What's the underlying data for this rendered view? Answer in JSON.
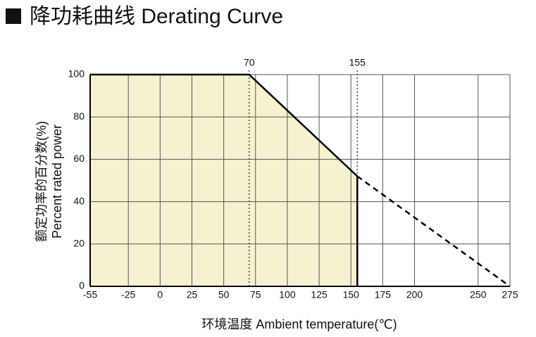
{
  "chart_data": {
    "type": "line",
    "title": "降功耗曲线 Derating Curve",
    "ylabel": [
      "额定功率的百分数(%)",
      "Percent rated power"
    ],
    "xlabel": "环境温度 Ambient temperature(℃)",
    "xlim": [
      -55,
      275
    ],
    "ylim": [
      0,
      100
    ],
    "xticks": [
      -55,
      -25,
      0,
      25,
      50,
      75,
      100,
      125,
      150,
      175,
      200,
      250,
      275
    ],
    "yticks": [
      0,
      20,
      40,
      60,
      80,
      100
    ],
    "grid": true,
    "vlines": [
      70,
      155
    ],
    "series": [
      {
        "x": [
          -55,
          70,
          155
        ],
        "values": [
          100,
          100,
          52
        ],
        "color": "#000000",
        "style": "solid",
        "fill": "#f6f1cf"
      },
      {
        "x": [
          155,
          275
        ],
        "values": [
          52,
          0
        ],
        "color": "#000000",
        "style": "dashed"
      }
    ]
  }
}
